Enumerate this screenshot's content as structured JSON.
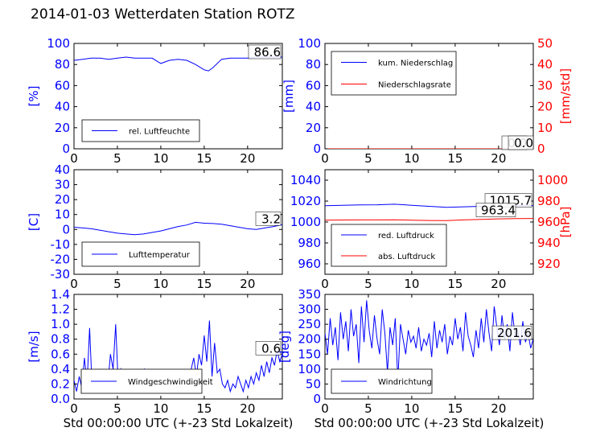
{
  "title": "2014-01-03 Wetterdaten Station ROTZ",
  "colors": {
    "primary": "#0000ff",
    "secondary": "#ff0000",
    "text": "#000000"
  },
  "chart_data": [
    {
      "id": "humidity",
      "type": "line",
      "xlim": [
        0,
        24
      ],
      "xticks": [
        0,
        5,
        10,
        15,
        20
      ],
      "ylim": [
        0,
        100
      ],
      "yticks": [
        0,
        20,
        40,
        60,
        80,
        100
      ],
      "ylabel": "[%]",
      "value_box": "86.6",
      "legend": {
        "placement": "lower-left",
        "entries": [
          "rel. Luftfeuchte"
        ]
      },
      "series": [
        {
          "name": "rel. Luftfeuchte",
          "color": "#0000ff",
          "axis": "left",
          "x": [
            0,
            1,
            2,
            3,
            4,
            5,
            6,
            7,
            8,
            9,
            10,
            11,
            12,
            13,
            14,
            15,
            15.5,
            16,
            17,
            18,
            19,
            20,
            21,
            22,
            23,
            24
          ],
          "y": [
            84,
            85,
            86,
            86,
            85,
            86,
            87,
            86,
            86,
            86,
            81,
            84,
            85,
            84,
            80,
            75,
            74,
            77,
            85,
            86,
            86,
            86,
            87,
            87,
            87,
            87
          ]
        }
      ]
    },
    {
      "id": "precip",
      "type": "line",
      "xlim": [
        0,
        24
      ],
      "xticks": [
        0,
        5,
        10,
        15,
        20
      ],
      "ylim": [
        0,
        100
      ],
      "yticks": [
        0,
        20,
        40,
        60,
        80,
        100
      ],
      "ylabel": "[mm]",
      "y2lim": [
        0,
        50
      ],
      "y2ticks": [
        0,
        10,
        20,
        30,
        40,
        50
      ],
      "y2label": "[mm/std]",
      "value_box": "0.0",
      "value_box2": "0.0",
      "legend": {
        "placement": "upper-left",
        "entries": [
          "kum. Niederschlag",
          "Niederschlagsrate"
        ]
      },
      "series": [
        {
          "name": "kum. Niederschlag",
          "color": "#0000ff",
          "axis": "left",
          "x": [
            0,
            24
          ],
          "y": [
            0,
            0
          ]
        },
        {
          "name": "Niederschlagsrate",
          "color": "#ff0000",
          "axis": "right",
          "x": [
            0,
            24
          ],
          "y": [
            0,
            0
          ]
        }
      ]
    },
    {
      "id": "temperature",
      "type": "line",
      "xlim": [
        0,
        24
      ],
      "xticks": [
        0,
        5,
        10,
        15,
        20
      ],
      "ylim": [
        -30,
        40
      ],
      "yticks": [
        -30,
        -20,
        -10,
        0,
        10,
        20,
        30,
        40
      ],
      "ylabel": "[C]",
      "value_box": "3.2",
      "legend": {
        "placement": "lower-left",
        "entries": [
          "Lufttemperatur"
        ]
      },
      "series": [
        {
          "name": "Lufttemperatur",
          "color": "#0000ff",
          "axis": "left",
          "x": [
            0,
            1,
            2,
            3,
            4,
            5,
            6,
            7,
            8,
            9,
            10,
            11,
            12,
            13,
            14,
            15,
            16,
            17,
            18,
            19,
            20,
            21,
            22,
            23,
            24
          ],
          "y": [
            1.5,
            1,
            0.5,
            -0.5,
            -1.5,
            -2.5,
            -3,
            -3.5,
            -3,
            -2,
            -1,
            0.5,
            2,
            3,
            4.8,
            4.2,
            4,
            3.5,
            2.5,
            1.5,
            0.5,
            0,
            1,
            2,
            3.2
          ]
        }
      ]
    },
    {
      "id": "pressure",
      "type": "line",
      "xlim": [
        0,
        24
      ],
      "xticks": [
        0,
        5,
        10,
        15,
        20
      ],
      "ylim": [
        950,
        1050
      ],
      "yticks": [
        960,
        980,
        1000,
        1020,
        1040
      ],
      "ylabel": "",
      "y2lim": [
        910,
        1010
      ],
      "y2ticks": [
        920,
        940,
        960,
        980,
        1000
      ],
      "y2label": "[hPa]",
      "value_box": "1015.7",
      "value_box2": "963.4",
      "legend": {
        "placement": "lower-left",
        "entries": [
          "red. Luftdruck",
          "abs. Luftdruck"
        ]
      },
      "series": [
        {
          "name": "red. Luftdruck",
          "color": "#0000ff",
          "axis": "left",
          "x": [
            0,
            2,
            4,
            6,
            8,
            10,
            12,
            14,
            16,
            18,
            20,
            22,
            24
          ],
          "y": [
            1015.5,
            1016,
            1016.3,
            1016.5,
            1017,
            1016,
            1015,
            1014,
            1014.5,
            1015,
            1015.3,
            1015.6,
            1015.7
          ]
        },
        {
          "name": "abs. Luftdruck",
          "color": "#ff0000",
          "axis": "right",
          "x": [
            0,
            2,
            4,
            6,
            8,
            10,
            12,
            14,
            16,
            18,
            20,
            22,
            24
          ],
          "y": [
            961.7,
            961.9,
            962,
            962,
            962.1,
            961.8,
            961.5,
            961.4,
            962,
            962.5,
            963,
            963.2,
            963.4
          ]
        }
      ]
    },
    {
      "id": "wind-speed",
      "type": "line",
      "xlim": [
        0,
        24
      ],
      "xticks": [
        0,
        5,
        10,
        15,
        20
      ],
      "ylim": [
        0,
        1.4
      ],
      "yticks": [
        0.0,
        0.2,
        0.4,
        0.6,
        0.8,
        1.0,
        1.2,
        1.4
      ],
      "ylabel": "[m/s]",
      "xlabel": "Std 00:00:00 UTC (+-23 Std Lokalzeit)",
      "value_box": "0.6",
      "legend": {
        "placement": "lower-left",
        "entries": [
          "Windgeschwindigkeit"
        ]
      },
      "series": [
        {
          "name": "Windgeschwindigkeit",
          "color": "#0000ff",
          "axis": "left",
          "x": [
            0,
            0.3,
            0.6,
            0.9,
            1.2,
            1.5,
            1.8,
            2.1,
            2.4,
            2.7,
            3,
            3.3,
            3.6,
            3.9,
            4.2,
            4.5,
            4.8,
            5.1,
            5.4,
            5.7,
            6,
            6.3,
            6.6,
            6.9,
            7.2,
            7.5,
            7.8,
            8.1,
            8.4,
            8.7,
            9,
            9.3,
            9.6,
            9.9,
            10.2,
            10.5,
            10.8,
            11.1,
            11.4,
            11.7,
            12,
            12.3,
            12.6,
            12.9,
            13.2,
            13.5,
            13.8,
            14.1,
            14.4,
            14.7,
            15,
            15.3,
            15.6,
            15.9,
            16.2,
            16.5,
            16.8,
            17.1,
            17.4,
            17.7,
            18,
            18.3,
            18.6,
            18.9,
            19.2,
            19.5,
            19.8,
            20.1,
            20.4,
            20.7,
            21,
            21.3,
            21.6,
            21.9,
            22.2,
            22.5,
            22.8,
            23.1,
            23.4,
            23.7,
            24
          ],
          "y": [
            0.25,
            0.1,
            0.3,
            0.15,
            0.55,
            0.2,
            0.95,
            0.1,
            0.35,
            0.2,
            0.4,
            0.15,
            0.3,
            0.2,
            0.6,
            0.4,
            1.0,
            0.2,
            0.4,
            0.3,
            0.15,
            0.35,
            0.2,
            0.3,
            0.1,
            0.25,
            0.35,
            0.4,
            0.2,
            0.35,
            0.2,
            0.15,
            0.3,
            0.25,
            0.1,
            0.3,
            0.15,
            0.25,
            0.2,
            0.3,
            0.1,
            0.2,
            0.25,
            0.15,
            0.3,
            0.4,
            0.55,
            0.3,
            0.6,
            0.45,
            0.85,
            0.5,
            1.05,
            0.3,
            0.75,
            0.35,
            0.4,
            0.2,
            0.15,
            0.25,
            0.1,
            0.2,
            0.15,
            0.3,
            0.2,
            0.1,
            0.25,
            0.15,
            0.3,
            0.2,
            0.35,
            0.25,
            0.45,
            0.3,
            0.5,
            0.35,
            0.55,
            0.45,
            0.65,
            0.5,
            0.6
          ]
        }
      ]
    },
    {
      "id": "wind-direction",
      "type": "line",
      "xlim": [
        0,
        24
      ],
      "xticks": [
        0,
        5,
        10,
        15,
        20
      ],
      "ylim": [
        0,
        350
      ],
      "yticks": [
        0,
        50,
        100,
        150,
        200,
        250,
        300,
        350
      ],
      "ylabel": "[deg]",
      "xlabel": "Std 00:00:00 UTC (+-23 Std Lokalzeit)",
      "value_box": "201.6",
      "legend": {
        "placement": "lower-left",
        "entries": [
          "Windrichtung"
        ]
      },
      "series": [
        {
          "name": "Windrichtung",
          "color": "#0000ff",
          "axis": "left",
          "x": [
            0,
            0.3,
            0.6,
            0.9,
            1.2,
            1.5,
            1.8,
            2.1,
            2.4,
            2.7,
            3,
            3.3,
            3.6,
            3.9,
            4.2,
            4.5,
            4.8,
            5.1,
            5.4,
            5.7,
            6,
            6.3,
            6.6,
            6.9,
            7.2,
            7.5,
            7.8,
            8.1,
            8.4,
            8.7,
            9,
            9.3,
            9.6,
            9.9,
            10.2,
            10.5,
            10.8,
            11.1,
            11.4,
            11.7,
            12,
            12.3,
            12.6,
            12.9,
            13.2,
            13.5,
            13.8,
            14.1,
            14.4,
            14.7,
            15,
            15.3,
            15.6,
            15.9,
            16.2,
            16.5,
            16.8,
            17.1,
            17.4,
            17.7,
            18,
            18.3,
            18.6,
            18.9,
            19.2,
            19.5,
            19.8,
            20.1,
            20.4,
            20.7,
            21,
            21.3,
            21.6,
            21.9,
            22.2,
            22.5,
            22.8,
            23.1,
            23.4,
            23.7,
            24
          ],
          "y": [
            220,
            150,
            270,
            180,
            240,
            130,
            290,
            200,
            260,
            160,
            300,
            210,
            250,
            120,
            310,
            190,
            330,
            230,
            170,
            280,
            200,
            150,
            300,
            220,
            90,
            240,
            180,
            270,
            60,
            250,
            200,
            150,
            230,
            190,
            210,
            170,
            240,
            160,
            200,
            180,
            220,
            140,
            260,
            170,
            230,
            190,
            250,
            150,
            210,
            180,
            270,
            200,
            240,
            160,
            290,
            210,
            180,
            140,
            230,
            170,
            270,
            190,
            300,
            220,
            160,
            310,
            240,
            180,
            280,
            200,
            250,
            160,
            290,
            210,
            230,
            180,
            260,
            190,
            220,
            170,
            201.6
          ]
        }
      ]
    }
  ]
}
